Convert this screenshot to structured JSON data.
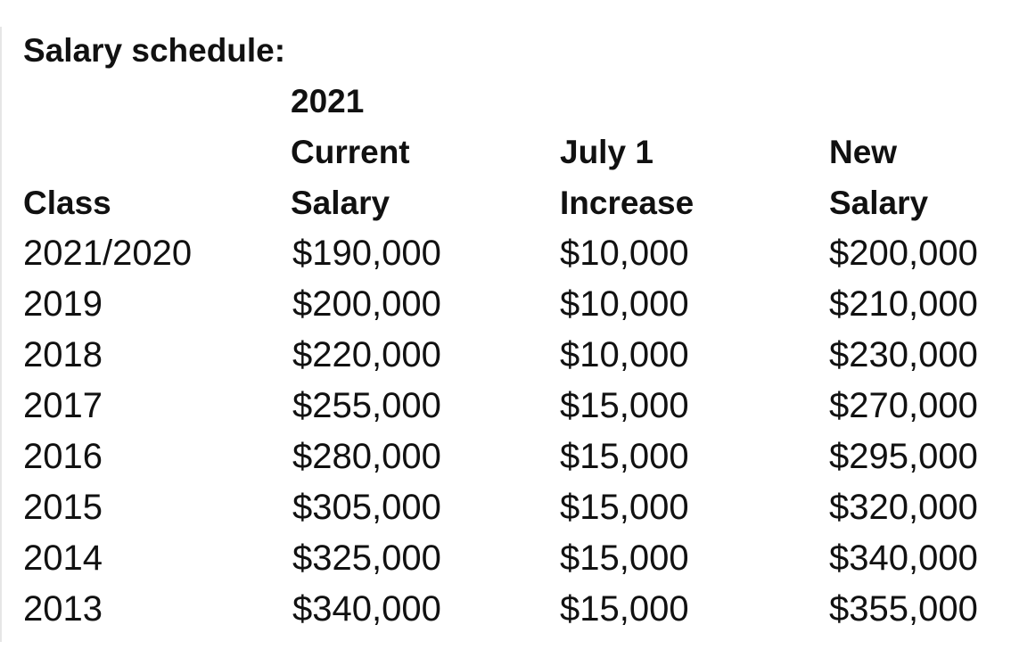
{
  "title": "Salary schedule:",
  "columns": [
    "Class",
    "2021\nCurrent\nSalary",
    "July 1\nIncrease",
    "New\nSalary"
  ],
  "rows": [
    [
      "2021/2020",
      "$190,000",
      "$10,000",
      "$200,000"
    ],
    [
      "2019",
      "$200,000",
      "$10,000",
      "$210,000"
    ],
    [
      "2018",
      "$220,000",
      "$10,000",
      "$230,000"
    ],
    [
      "2017",
      "$255,000",
      "$15,000",
      "$270,000"
    ],
    [
      "2016",
      "$280,000",
      "$15,000",
      "$295,000"
    ],
    [
      "2015",
      "$305,000",
      "$15,000",
      "$320,000"
    ],
    [
      "2014",
      "$325,000",
      "$15,000",
      "$340,000"
    ],
    [
      "2013",
      "$340,000",
      "$15,000",
      "$355,000"
    ]
  ]
}
